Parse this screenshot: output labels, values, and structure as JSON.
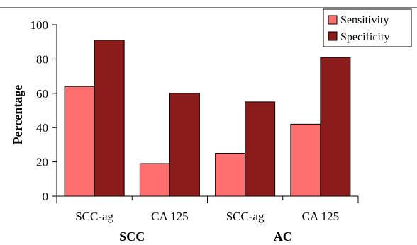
{
  "chart_data": {
    "type": "bar",
    "title": "",
    "xlabel": "",
    "ylabel": "Percentage",
    "ylim": [
      0,
      100
    ],
    "yticks": [
      0,
      20,
      40,
      60,
      80,
      100
    ],
    "categories": [
      "SCC-ag",
      "CA 125",
      "SCC-ag",
      "CA 125"
    ],
    "groups": [
      {
        "label": "SCC",
        "categories": [
          "SCC-ag",
          "CA 125"
        ]
      },
      {
        "label": "AC",
        "categories": [
          "SCC-ag",
          "CA 125"
        ]
      }
    ],
    "series": [
      {
        "name": "Sensitivity",
        "color": "#ff6f6f",
        "values": [
          64,
          19,
          25,
          42
        ]
      },
      {
        "name": "Specificity",
        "color": "#8b1c1c",
        "values": [
          91,
          60,
          55,
          81
        ]
      }
    ],
    "legend_position": "top-right",
    "grid": false
  }
}
